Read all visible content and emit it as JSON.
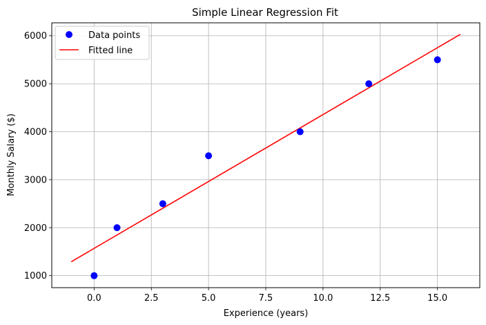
{
  "chart_data": {
    "type": "scatter",
    "title": "Simple Linear Regression Fit",
    "xlabel": "Experience (years)",
    "ylabel": "Monthly Salary ($)",
    "xlim": [
      -1.85,
      16.85
    ],
    "ylim": [
      750,
      6270
    ],
    "xticks": [
      0.0,
      2.5,
      5.0,
      7.5,
      10.0,
      12.5,
      15.0
    ],
    "xtick_labels": [
      "0.0",
      "2.5",
      "5.0",
      "7.5",
      "10.0",
      "12.5",
      "15.0"
    ],
    "yticks": [
      1000,
      2000,
      3000,
      4000,
      5000,
      6000
    ],
    "ytick_labels": [
      "1000",
      "2000",
      "3000",
      "4000",
      "5000",
      "6000"
    ],
    "grid": true,
    "legend_position": "top-left",
    "series": [
      {
        "name": "Data points",
        "kind": "scatter",
        "color": "#0000ff",
        "x": [
          0,
          1,
          3,
          5,
          9,
          12,
          15
        ],
        "y": [
          1000,
          2000,
          2500,
          3500,
          4000,
          5000,
          5500
        ]
      },
      {
        "name": "Fitted line",
        "kind": "line",
        "color": "#ff0000",
        "x": [
          -1,
          16
        ],
        "y": [
          1290,
          6030
        ]
      }
    ]
  }
}
